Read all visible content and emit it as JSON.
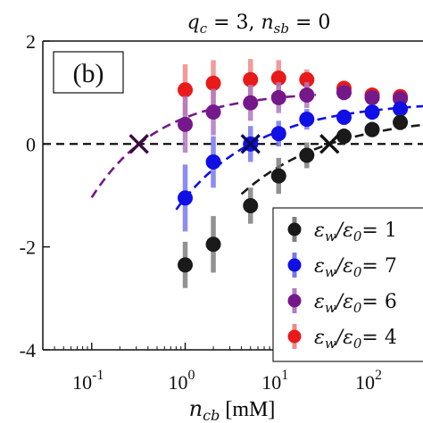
{
  "chart_data": {
    "type": "scatter",
    "title_parts": {
      "q": "q",
      "q_sub": "c",
      "q_val": " = 3, ",
      "n": "n",
      "n_sub": "sb",
      "n_val": " = 0"
    },
    "panel_label": "(b)",
    "xlabel_parts": {
      "var": "n",
      "sub": "cb",
      "unit": " [mM]"
    },
    "xscale": "log",
    "xlim": [
      0.03,
      350
    ],
    "ylim": [
      -4,
      2
    ],
    "xticks": [
      {
        "value": 0.1,
        "base": "10",
        "exp": "-1"
      },
      {
        "value": 1,
        "base": "10",
        "exp": "0"
      },
      {
        "value": 10,
        "base": "10",
        "exp": "1"
      },
      {
        "value": 100,
        "base": "10",
        "exp": "2"
      }
    ],
    "yticks": [
      -4,
      -2,
      0,
      2
    ],
    "zero_line": {
      "y": 0,
      "style": "dashed",
      "color": "#000000"
    },
    "legend_position": "bottom-right",
    "series": [
      {
        "name_eps": "ε",
        "name_sub1": "w",
        "name_mid": "/ε",
        "name_sub2": "0",
        "name_val": "= 1",
        "color": "#1a1a1a",
        "bar_color": "#808080",
        "points": [
          {
            "x": 1,
            "y": -2.35,
            "err": 0.45
          },
          {
            "x": 2,
            "y": -1.95,
            "err": 0.55
          },
          {
            "x": 5,
            "y": -1.2,
            "err": 0.35
          },
          {
            "x": 10,
            "y": -0.62,
            "err": 0.35
          },
          {
            "x": 20,
            "y": -0.22,
            "err": 0.25
          },
          {
            "x": 50,
            "y": 0.15,
            "err": 0.15
          },
          {
            "x": 100,
            "y": 0.28,
            "err": 0.15
          },
          {
            "x": 200,
            "y": 0.42,
            "err": 0.15
          }
        ],
        "fit_x_range": [
          4,
          350
        ],
        "crossing_x": 35
      },
      {
        "name_eps": "ε",
        "name_sub1": "w",
        "name_mid": "/ε",
        "name_sub2": "0",
        "name_val": "= 7",
        "color": "#0f0fe6",
        "bar_color": "#7878f0",
        "points": [
          {
            "x": 1,
            "y": -1.05,
            "err": 0.65
          },
          {
            "x": 2,
            "y": -0.35,
            "err": 0.5
          },
          {
            "x": 5,
            "y": 0.0,
            "err": 0.35
          },
          {
            "x": 10,
            "y": 0.2,
            "err": 0.25
          },
          {
            "x": 20,
            "y": 0.48,
            "err": 0.2
          },
          {
            "x": 50,
            "y": 0.52,
            "err": 0.15
          },
          {
            "x": 100,
            "y": 0.62,
            "err": 0.15
          },
          {
            "x": 200,
            "y": 0.68,
            "err": 0.12
          }
        ],
        "fit_x_range": [
          0.8,
          350
        ],
        "crossing_x": 5
      },
      {
        "name_eps": "ε",
        "name_sub1": "w",
        "name_mid": "/ε",
        "name_sub2": "0",
        "name_val": "= 6",
        "color": "#75188a",
        "bar_color": "#b07ac0",
        "points": [
          {
            "x": 1,
            "y": 0.38,
            "err": 0.55
          },
          {
            "x": 2,
            "y": 0.62,
            "err": 0.45
          },
          {
            "x": 5,
            "y": 0.8,
            "err": 0.35
          },
          {
            "x": 10,
            "y": 0.9,
            "err": 0.3
          },
          {
            "x": 20,
            "y": 0.95,
            "err": 0.25
          },
          {
            "x": 50,
            "y": 1.0,
            "err": 0.15
          },
          {
            "x": 100,
            "y": 0.9,
            "err": 0.12
          },
          {
            "x": 200,
            "y": 0.88,
            "err": 0.1
          }
        ],
        "fit_x_range": [
          0.1,
          25
        ],
        "crossing_x": 0.32
      },
      {
        "name_eps": "ε",
        "name_sub1": "w",
        "name_mid": "/ε",
        "name_sub2": "0",
        "name_val": "= 4",
        "color": "#e81a1a",
        "bar_color": "#f08a8a",
        "points": [
          {
            "x": 1,
            "y": 1.05,
            "err": 0.5
          },
          {
            "x": 2,
            "y": 1.18,
            "err": 0.45
          },
          {
            "x": 5,
            "y": 1.25,
            "err": 0.4
          },
          {
            "x": 10,
            "y": 1.28,
            "err": 0.35
          },
          {
            "x": 20,
            "y": 1.25,
            "err": 0.2
          },
          {
            "x": 50,
            "y": 1.08,
            "err": 0.15
          },
          {
            "x": 100,
            "y": 0.95,
            "err": 0.12
          },
          {
            "x": 200,
            "y": 0.92,
            "err": 0.1
          }
        ],
        "fit_x_range": null,
        "crossing_x": null
      }
    ]
  }
}
